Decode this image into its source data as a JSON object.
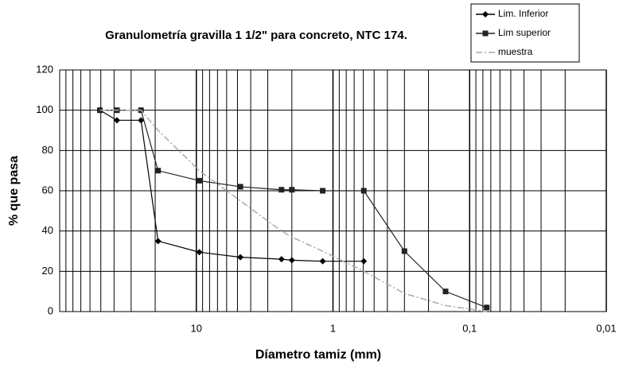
{
  "chart_data": {
    "type": "line",
    "title": "Granulometría gravilla 1 1/2\" para concreto, NTC 174.",
    "x_label": "Díametro tamiz  (mm)",
    "y_label": "% que pasa",
    "x_log": true,
    "grid": true,
    "x": [
      50.8,
      38.1,
      25.4,
      19.05,
      9.51,
      4.76,
      2.38,
      2.0,
      1.19,
      0.595,
      0.3,
      0.15,
      0.075
    ],
    "series": [
      {
        "name": "Lim. Inferior",
        "color": "#000000",
        "marker": "diamond",
        "dash": false,
        "values": [
          100,
          95,
          95,
          35,
          29.5,
          27,
          26,
          25.5,
          25,
          25,
          null,
          null,
          2
        ]
      },
      {
        "name": "Lim superior",
        "color": "#222222",
        "marker": "square",
        "dash": false,
        "values": [
          100,
          100,
          100,
          70,
          65,
          62,
          60.5,
          60.5,
          60,
          60,
          30,
          10,
          2
        ]
      },
      {
        "name": "muestra",
        "color": "#aaaaaa",
        "marker": "none",
        "dash": true,
        "values": [
          100,
          100,
          100,
          90,
          70,
          55,
          40,
          37,
          30,
          20,
          9,
          3,
          0
        ]
      }
    ],
    "xlim": [
      100,
      0.01
    ],
    "xticks": [
      10,
      1,
      {
        "value": 0.1,
        "label": "0,1"
      },
      {
        "value": 0.01,
        "label": "0,01"
      }
    ],
    "ylim": [
      0,
      120
    ],
    "yticks": [
      0,
      20,
      40,
      60,
      80,
      100,
      120
    ]
  }
}
